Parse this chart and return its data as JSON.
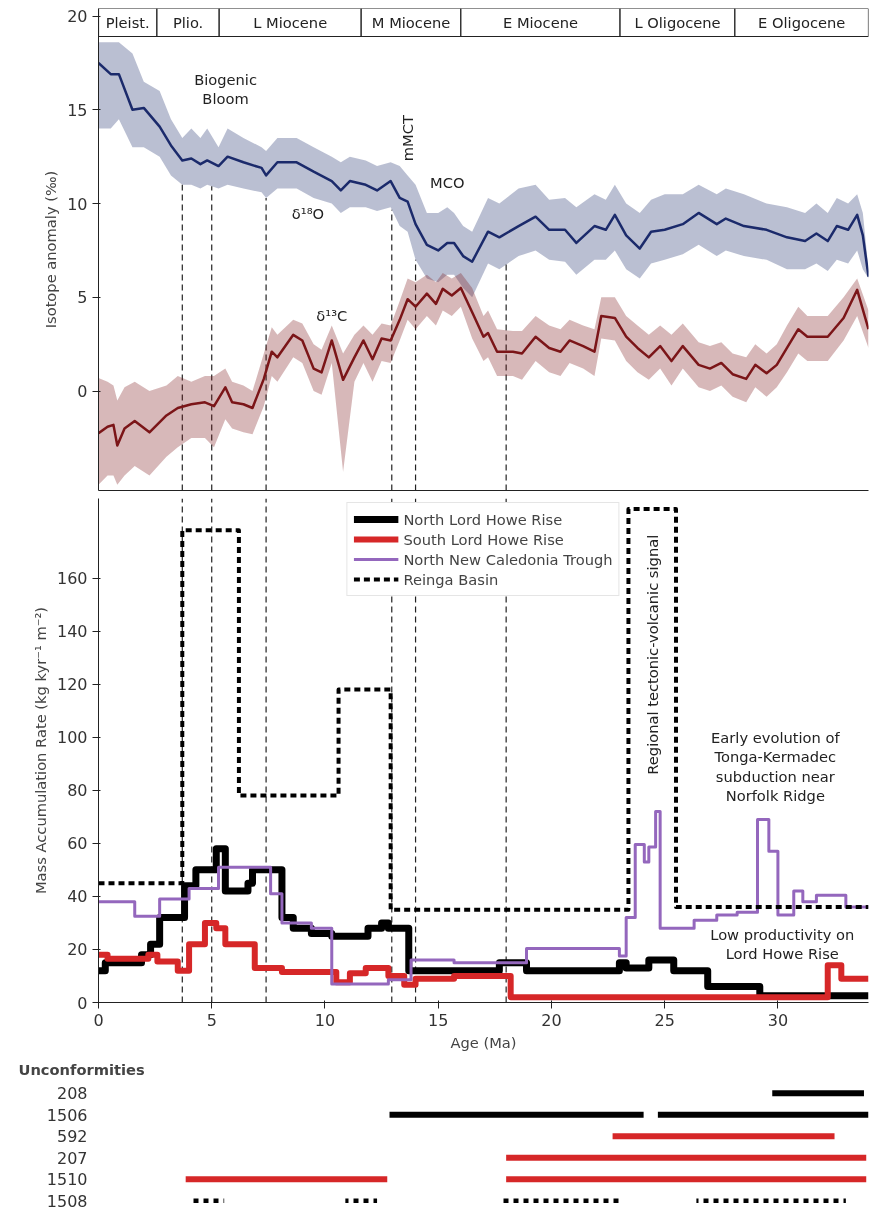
{
  "chart_data": [
    {
      "type": "line",
      "ylabel": "Isotope anomaly (‰)",
      "xlim": [
        0,
        34
      ],
      "ylim": [
        -5.3,
        20.4
      ],
      "yticks": [
        0,
        5,
        10,
        15,
        20
      ],
      "tick_labels": "y",
      "series": [
        {
          "color": "#1b2a6b",
          "x": [
            0,
            0.54,
            0.9,
            1.5,
            2.0,
            2.7,
            3.2,
            3.7,
            4.1,
            4.5,
            4.8,
            5.3,
            5.7,
            6.4,
            7.2,
            7.4,
            7.9,
            8.75,
            9.5,
            10.3,
            10.7,
            11.1,
            11.8,
            12.3,
            12.9,
            13.3,
            13.65,
            14.0,
            14.5,
            15.0,
            15.4,
            15.7,
            16.1,
            16.5,
            17.2,
            17.7,
            18.55,
            19.3,
            19.9,
            20.6,
            21.1,
            21.9,
            22.4,
            22.8,
            23.3,
            23.9,
            24.4,
            25.0,
            25.8,
            26.5,
            27.3,
            27.7,
            28.5,
            29.5,
            30.4,
            31.2,
            31.7,
            32.2,
            32.6,
            33.1,
            33.5,
            33.75,
            34
          ],
          "values": [
            17.5,
            16.9,
            16.9,
            15.0,
            15.1,
            14.1,
            13.1,
            12.3,
            12.4,
            12.1,
            12.3,
            12.0,
            12.5,
            12.2,
            11.9,
            11.5,
            12.2,
            12.2,
            11.7,
            11.2,
            10.7,
            11.2,
            11.0,
            10.7,
            11.2,
            10.3,
            10.1,
            8.9,
            7.8,
            7.5,
            7.9,
            7.9,
            7.2,
            6.9,
            8.5,
            8.2,
            8.8,
            9.3,
            8.6,
            8.6,
            7.9,
            8.8,
            8.6,
            9.4,
            8.3,
            7.6,
            8.5,
            8.6,
            8.9,
            9.5,
            8.9,
            9.2,
            8.8,
            8.6,
            8.2,
            8.0,
            8.4,
            8.0,
            8.8,
            8.6,
            9.4,
            8.3,
            6.1
          ],
          "upper": [
            18.6,
            18.6,
            18.6,
            18,
            16.5,
            16,
            14.5,
            13.5,
            14,
            13.5,
            14,
            13,
            14,
            13.5,
            13,
            12.8,
            13.5,
            13.5,
            13,
            12.5,
            12.2,
            12.5,
            12.3,
            12,
            12.2,
            12,
            11.5,
            11,
            9.5,
            9.5,
            9.8,
            9.5,
            8.8,
            8.5,
            10.3,
            10,
            10.8,
            11,
            10.2,
            10.3,
            9.8,
            10.5,
            10.2,
            11,
            10,
            9.5,
            10.2,
            10.5,
            10.5,
            11,
            10.5,
            10.8,
            10.5,
            10,
            9.8,
            9.5,
            10,
            9.5,
            10.3,
            10,
            10.5,
            9.5,
            6.5
          ],
          "lower": [
            14,
            14,
            14.5,
            13,
            13,
            12.5,
            11.5,
            11,
            11,
            10.8,
            11,
            10.8,
            11,
            10.8,
            10.6,
            10.3,
            10.8,
            10.8,
            10.3,
            10,
            9.5,
            9.8,
            9.8,
            9.6,
            9.8,
            8.8,
            8.5,
            7,
            6,
            5.8,
            6.2,
            6.2,
            5.5,
            5,
            6.8,
            6.5,
            7.2,
            7.5,
            7,
            6.9,
            6.2,
            7,
            7,
            7.5,
            6.5,
            6,
            6.8,
            7,
            7.3,
            7.8,
            7.2,
            7.5,
            7.2,
            7,
            6.5,
            6.5,
            6.8,
            6.4,
            7,
            6.8,
            7.5,
            6.5,
            6
          ]
        },
        {
          "color": "#7b1518",
          "x": [
            0,
            0.4,
            0.66,
            0.83,
            1.15,
            1.6,
            2.25,
            3.0,
            3.5,
            4.1,
            4.7,
            5.1,
            5.6,
            5.9,
            6.4,
            6.8,
            7.3,
            7.65,
            7.9,
            8.6,
            9.0,
            9.5,
            9.85,
            10.3,
            10.8,
            11.3,
            11.7,
            12.1,
            12.5,
            12.9,
            13.3,
            13.65,
            14.0,
            14.5,
            14.9,
            15.2,
            15.6,
            16.0,
            16.5,
            17.0,
            17.2,
            17.6,
            18.3,
            18.7,
            19.3,
            19.9,
            20.4,
            20.8,
            21.4,
            21.9,
            22.2,
            22.8,
            23.3,
            23.8,
            24.3,
            24.8,
            25.3,
            25.8,
            26.5,
            27.0,
            27.5,
            28.0,
            28.6,
            29.0,
            29.5,
            29.95,
            30.4,
            30.9,
            31.3,
            32.2,
            32.9,
            33.5,
            34
          ],
          "values": [
            -2.25,
            -1.9,
            -1.8,
            -2.9,
            -2.0,
            -1.6,
            -2.2,
            -1.3,
            -0.9,
            -0.7,
            -0.6,
            -0.8,
            0.2,
            -0.6,
            -0.7,
            -0.9,
            0.65,
            2.1,
            1.8,
            3.0,
            2.7,
            1.2,
            1.0,
            2.7,
            0.6,
            1.8,
            2.7,
            1.7,
            2.8,
            2.7,
            3.8,
            4.9,
            4.5,
            5.2,
            4.65,
            5.45,
            5.1,
            5.5,
            4.2,
            2.9,
            3.1,
            2.1,
            2.1,
            2.0,
            2.9,
            2.3,
            2.1,
            2.7,
            2.4,
            2.1,
            4.0,
            3.9,
            2.9,
            2.3,
            1.8,
            2.4,
            1.6,
            2.4,
            1.4,
            1.2,
            1.5,
            0.9,
            0.65,
            1.4,
            0.95,
            1.4,
            2.3,
            3.3,
            2.9,
            2.9,
            3.9,
            5.4,
            3.3
          ],
          "upper": [
            0.7,
            0.5,
            0.3,
            -0.5,
            0.2,
            0.5,
            0,
            0.3,
            0.8,
            0.5,
            0.8,
            0.8,
            1.2,
            0.5,
            0.3,
            0,
            2,
            3.4,
            3,
            3.8,
            3.6,
            2.5,
            2.2,
            3.5,
            2,
            3,
            3.5,
            3,
            3.6,
            3.5,
            4.8,
            6,
            5.8,
            6.2,
            5.8,
            6.3,
            6,
            6.3,
            5.5,
            4,
            4.3,
            3.3,
            3.2,
            3.2,
            4,
            3.5,
            3.3,
            3.8,
            3.5,
            3.3,
            5,
            5,
            4,
            3.5,
            3,
            3.5,
            3,
            3.6,
            2.6,
            2.4,
            2.6,
            2,
            1.8,
            2.5,
            2,
            2.5,
            3.5,
            4.5,
            4,
            4,
            5,
            6,
            4.3
          ],
          "lower": [
            -5,
            -4.5,
            -4.5,
            -5,
            -4.5,
            -4,
            -4.5,
            -3.5,
            -3,
            -2.5,
            -2.5,
            -3,
            -1.5,
            -2,
            -2.2,
            -2.3,
            -0.8,
            0.8,
            0.5,
            1.8,
            1.5,
            0,
            -0.2,
            1.5,
            -4.3,
            0.5,
            1.5,
            0.5,
            1.6,
            1.5,
            2.7,
            3.8,
            3.3,
            4,
            3.5,
            4.3,
            4,
            4.5,
            2.8,
            1.6,
            1.8,
            0.8,
            0.8,
            0.6,
            1.6,
            1,
            0.8,
            1.5,
            1.2,
            0.8,
            2.8,
            2.7,
            1.6,
            1,
            0.6,
            1.2,
            0.3,
            1.2,
            0.2,
            0,
            0.3,
            -0.3,
            -0.6,
            0.2,
            -0.3,
            0.2,
            1,
            2,
            1.6,
            1.6,
            2.7,
            4,
            2.3
          ]
        }
      ],
      "bands": [
        {
          "axis": "x",
          "from": 0,
          "to": 2.58,
          "label": "Pleist.",
          "color": "#ffffff"
        },
        {
          "axis": "x",
          "from": 2.58,
          "to": 5.33,
          "label": "Plio.",
          "color": "#ffffff"
        },
        {
          "axis": "x",
          "from": 5.33,
          "to": 11.6,
          "label": "L Miocene",
          "color": "#ffffff"
        },
        {
          "axis": "x",
          "from": 11.6,
          "to": 16.0,
          "label": "M Miocene",
          "color": "#ffffff"
        },
        {
          "axis": "x",
          "from": 16.0,
          "to": 23.03,
          "label": "E Miocene",
          "color": "#ffffff"
        },
        {
          "axis": "x",
          "from": 23.03,
          "to": 28.1,
          "label": "L Oligocene",
          "color": "#ffffff"
        },
        {
          "axis": "x",
          "from": 28.1,
          "to": 34,
          "label": "E Oligocene",
          "color": "#ffffff"
        }
      ],
      "ref_lines": [
        {
          "axis": "x",
          "value": 3.7,
          "line_style": "dashed"
        },
        {
          "axis": "x",
          "value": 5.0,
          "line_style": "dashed"
        },
        {
          "axis": "x",
          "value": 7.4,
          "line_style": "dashed"
        },
        {
          "axis": "x",
          "value": 12.95,
          "line_style": "dashed"
        },
        {
          "axis": "x",
          "value": 14.0,
          "line_style": "dashed"
        },
        {
          "axis": "x",
          "value": 18.0,
          "line_style": "dashed"
        }
      ],
      "annotations": [
        "Biogenic\nBloom",
        "mMCT",
        "MCO",
        "δ¹⁸O",
        "δ¹³C"
      ]
    },
    {
      "type": "step",
      "xlabel": "Age (Ma)",
      "ylabel": "Mass Accumulation Rate (kg kyr⁻¹ m⁻²)",
      "xlim": [
        0,
        34
      ],
      "ylim": [
        0,
        190
      ],
      "xticks": [
        0,
        5,
        10,
        15,
        20,
        25,
        30
      ],
      "yticks": [
        0,
        20,
        40,
        60,
        80,
        100,
        120,
        140,
        160
      ],
      "legend": "top",
      "series": [
        {
          "name": "North Lord Howe Rise",
          "color": "#000000",
          "x": [
            0,
            0.3,
            1.9,
            2.3,
            2.7,
            3.8,
            4.3,
            5.2,
            5.6,
            6.6,
            6.8,
            8.1,
            8.6,
            9.4,
            10.3,
            11.9,
            12.5,
            12.8,
            13.7,
            17.7,
            18.9,
            23.0,
            23.3,
            24.3,
            25.4,
            26.9,
            29.2,
            34
          ],
          "values": [
            12,
            15,
            18,
            22,
            32,
            44,
            50,
            58,
            42,
            45,
            50,
            32,
            28,
            26,
            25,
            28,
            30,
            28,
            12,
            15,
            12,
            15,
            13,
            16,
            12,
            6,
            2.5,
            2.5
          ]
        },
        {
          "name": "South Lord Howe Rise",
          "color": "#d62728",
          "x": [
            0,
            0.4,
            2.2,
            2.6,
            3.5,
            4.0,
            4.7,
            5.2,
            5.6,
            6.9,
            8.1,
            10.5,
            11.1,
            11.8,
            12.8,
            13.5,
            14.0,
            15.7,
            18.2,
            32.2,
            32.8,
            34
          ],
          "values": [
            18,
            16.5,
            18,
            15.5,
            12,
            22,
            30,
            28,
            22,
            13,
            11.5,
            7.6,
            11,
            13,
            10,
            6.7,
            9,
            10,
            2,
            14,
            9,
            9
          ]
        },
        {
          "name": "North New Caledonia Trough",
          "color": "#9467bd",
          "x": [
            0,
            1.6,
            2.7,
            4.0,
            5.3,
            7.6,
            8.1,
            9.4,
            10.3,
            12.8,
            13.8,
            15.7,
            18.9,
            23.0,
            23.3,
            23.7,
            24.1,
            24.3,
            24.6,
            24.8,
            26.3,
            27.3,
            28.2,
            29.1,
            29.6,
            30.0,
            30.7,
            31.1,
            31.7,
            33.0,
            34
          ],
          "values": [
            38,
            32.5,
            39,
            43,
            51,
            41,
            30,
            28,
            7,
            8.6,
            16,
            15,
            20.4,
            17.5,
            32,
            59.6,
            53,
            58.6,
            72,
            28,
            31,
            33,
            34,
            69,
            57,
            33,
            42,
            38,
            40.4,
            36,
            36
          ]
        },
        {
          "name": "Reinga Basin",
          "color": "#000000",
          "line_style": "dashed",
          "x": [
            0,
            3.7,
            6.2,
            10.6,
            12.9,
            23.4,
            25.5,
            34
          ],
          "values": [
            45,
            178,
            78,
            118,
            35,
            186,
            36,
            36
          ]
        }
      ],
      "ref_lines": [
        {
          "axis": "x",
          "value": 3.7,
          "line_style": "dashed"
        },
        {
          "axis": "x",
          "value": 5.0,
          "line_style": "dashed"
        },
        {
          "axis": "x",
          "value": 7.4,
          "line_style": "dashed"
        },
        {
          "axis": "x",
          "value": 12.95,
          "line_style": "dashed"
        },
        {
          "axis": "x",
          "value": 14.0,
          "line_style": "dashed"
        },
        {
          "axis": "x",
          "value": 18.0,
          "line_style": "dashed"
        }
      ],
      "annotations": [
        "Regional tectonic-volcanic signal",
        "Early evolution of\nTonga-Kermadec\nsubduction near\nNorfolk Ridge",
        "Low productivity on\nLord Howe Rise"
      ]
    },
    {
      "type": "bar",
      "orientation": "horizontal",
      "title": "Unconformities",
      "xlim": [
        0,
        34
      ],
      "tick_labels": "y",
      "categories": [
        "208",
        "1506",
        "592",
        "207",
        "1510",
        "1508"
      ],
      "series": [
        {
          "color": "#000000",
          "base": [
            29.75,
            12.85,
            null,
            null,
            null,
            null
          ],
          "values": [
            4.05,
            11.22,
            null,
            null,
            null,
            null
          ]
        },
        {
          "color": "#000000",
          "base": [
            null,
            24.7,
            null,
            null,
            null,
            null
          ],
          "values": [
            null,
            9.3,
            null,
            null,
            null,
            null
          ]
        },
        {
          "color": "#d62728",
          "base": [
            null,
            null,
            22.7,
            18.0,
            3.85,
            null
          ],
          "values": [
            null,
            null,
            9.8,
            15.9,
            8.9,
            null
          ]
        },
        {
          "color": "#d62728",
          "base": [
            null,
            null,
            null,
            null,
            18.0,
            null
          ],
          "values": [
            null,
            null,
            null,
            null,
            15.9,
            null
          ]
        },
        {
          "color": "#000000",
          "line_style": "dotted",
          "base": [
            null,
            null,
            null,
            null,
            null,
            4.1
          ],
          "values": [
            null,
            null,
            null,
            null,
            null,
            1.45
          ]
        },
        {
          "color": "#000000",
          "line_style": "dotted",
          "base": [
            null,
            null,
            null,
            null,
            null,
            10.9
          ],
          "values": [
            null,
            null,
            null,
            null,
            null,
            1.4
          ]
        },
        {
          "color": "#000000",
          "line_style": "dotted",
          "base": [
            null,
            null,
            null,
            null,
            null,
            17.75
          ],
          "values": [
            null,
            null,
            null,
            null,
            null,
            5.3
          ]
        },
        {
          "color": "#000000",
          "line_style": "dotted",
          "base": [
            null,
            null,
            null,
            null,
            null,
            26.4
          ],
          "values": [
            null,
            null,
            null,
            null,
            null,
            6.6
          ]
        }
      ]
    }
  ]
}
